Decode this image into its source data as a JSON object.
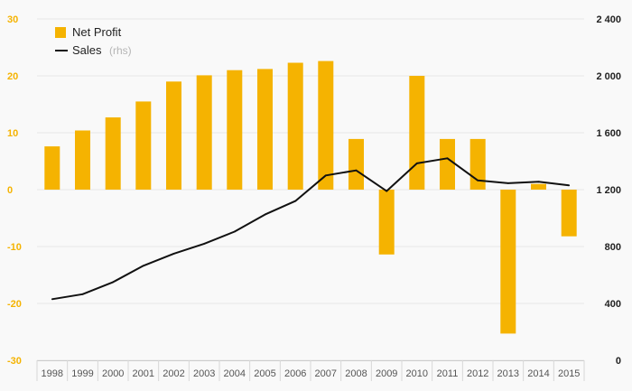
{
  "chart_data": {
    "type": "bar+line",
    "categories": [
      "1998",
      "1999",
      "2000",
      "2001",
      "2002",
      "2003",
      "2004",
      "2005",
      "2006",
      "2007",
      "2008",
      "2009",
      "2010",
      "2011",
      "2012",
      "2013",
      "2014",
      "2015"
    ],
    "series": [
      {
        "name": "Net Profit",
        "type": "bar",
        "axis": "left",
        "color": "#f5b301",
        "values": [
          7.6,
          10.4,
          12.7,
          15.5,
          19.0,
          20.1,
          21.0,
          21.2,
          22.3,
          22.6,
          8.9,
          -11.4,
          20.0,
          8.9,
          8.9,
          -25.3,
          1.0,
          -8.2
        ]
      },
      {
        "name": "Sales",
        "type": "line",
        "axis": "right",
        "color": "#111111",
        "values": [
          430,
          465,
          550,
          665,
          750,
          820,
          905,
          1025,
          1120,
          1300,
          1335,
          1190,
          1385,
          1420,
          1265,
          1245,
          1255,
          1230
        ]
      }
    ],
    "legend": {
      "position": "top-left",
      "net_profit_label": "Net Profit",
      "sales_label": "Sales",
      "sales_suffix": "(rhs)"
    },
    "y_left": {
      "min": -30,
      "max": 30,
      "ticks": [
        30,
        20,
        10,
        0,
        -10,
        -20,
        -30
      ],
      "tick_labels": [
        "30",
        "20",
        "10",
        "0",
        "-10",
        "-20",
        "-30"
      ]
    },
    "y_right": {
      "min": 0,
      "max": 2400,
      "ticks": [
        2400,
        2000,
        1600,
        1200,
        800,
        400,
        0
      ],
      "tick_labels": [
        "2 400",
        "2 000",
        "1 600",
        "1 200",
        "800",
        "400",
        "0"
      ]
    },
    "grid": true,
    "colors": {
      "bar": "#f5b301",
      "line": "#111111",
      "grid": "#e6e6e6",
      "left_axis_text": "#f5b301",
      "right_axis_text": "#222222"
    }
  }
}
